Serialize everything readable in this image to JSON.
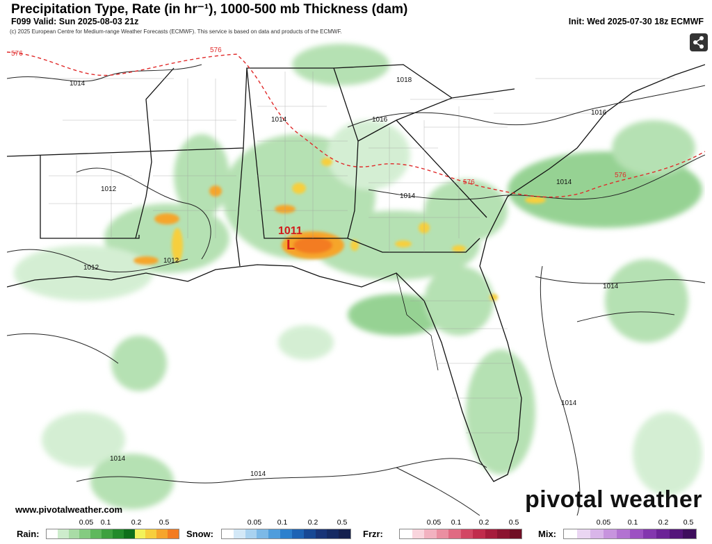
{
  "header": {
    "title": "Precipitation Type, Rate (in hr⁻¹), 1000-500 mb Thickness (dam)",
    "valid": "F099 Valid: Sun 2025-08-03 21z",
    "init": "Init: Wed 2025-07-30 18z ECMWF",
    "copyright": "(c) 2025 European Centre for Medium-range Weather Forecasts (ECMWF). This service is based on data and products of the ECMWF."
  },
  "map": {
    "isobar_labels": [
      "1014",
      "1018",
      "1016",
      "1014",
      "1016",
      "1012",
      "1014",
      "1014",
      "1012",
      "1012",
      "1014",
      "1014",
      "1014",
      "1014"
    ],
    "thickness_labels": [
      "576",
      "576",
      "576",
      "576"
    ],
    "low": {
      "symbol": "L",
      "value": "1011"
    },
    "thickness_line_color": "#e02a2a"
  },
  "branding": {
    "logo": "pivotal weather",
    "website": "www.pivotalweather.com"
  },
  "legend": {
    "rain": {
      "label": "Rain:",
      "ticks": [
        "0.05",
        "0.1",
        "0.2",
        "0.5"
      ],
      "colors": [
        "#ffffff",
        "#cdeccc",
        "#a9dca6",
        "#84cb81",
        "#5fb85d",
        "#3ea13f",
        "#228a2a",
        "#0e6f1a",
        "#f2f25a",
        "#f7cf3d",
        "#f6a52c",
        "#f37c22"
      ]
    },
    "snow": {
      "label": "Snow:",
      "ticks": [
        "0.05",
        "0.1",
        "0.2",
        "0.5"
      ],
      "colors": [
        "#ffffff",
        "#d3e8f7",
        "#a9d2f0",
        "#7cb9e7",
        "#4f9ddc",
        "#2c80cd",
        "#1d63b4",
        "#174894",
        "#183477",
        "#152a63",
        "#14204f"
      ]
    },
    "frzr": {
      "label": "Frzr:",
      "ticks": [
        "0.05",
        "0.1",
        "0.2",
        "0.5"
      ],
      "colors": [
        "#ffffff",
        "#f9d5dd",
        "#f2b2c0",
        "#ea8fa1",
        "#e06a82",
        "#d24764",
        "#c02c4c",
        "#a61c3c",
        "#8b1430",
        "#6f0e24"
      ]
    },
    "mix": {
      "label": "Mix:",
      "ticks": [
        "0.05",
        "0.1",
        "0.2",
        "0.5"
      ],
      "colors": [
        "#ffffff",
        "#ead6f2",
        "#d9b6e9",
        "#c794de",
        "#b272d1",
        "#9c52c2",
        "#8337ae",
        "#6b2296",
        "#54157a",
        "#3e0d5c"
      ]
    }
  }
}
